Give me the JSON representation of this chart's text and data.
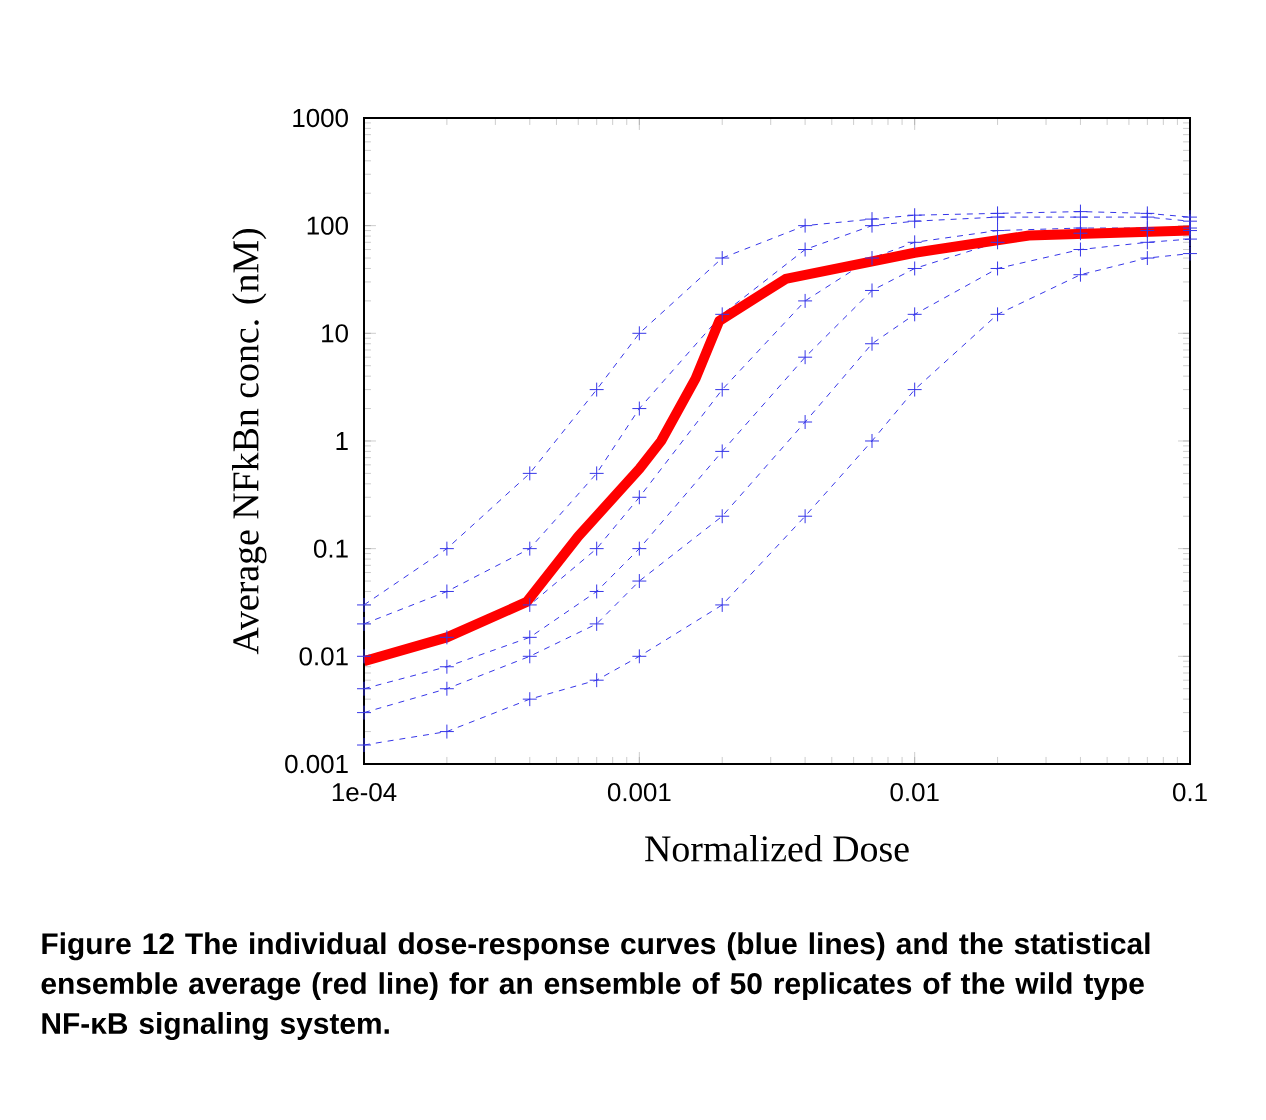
{
  "chart_data": {
    "type": "line",
    "xlabel": "Normalized Dose",
    "ylabel": "Average NFkBn conc. (nM)",
    "annotations": [
      "Figure 12 The individual dose-response curves (blue lines) and the statistical ensemble average (red line) for an ensemble of 50 replicates of the wild type NF-κB signaling system."
    ],
    "log": "xy",
    "xlim": [
      0.0001,
      0.1
    ],
    "ylim": [
      0.001,
      1000
    ],
    "xticks": [
      {
        "value": 0.0001,
        "label": "1e-04"
      },
      0.001,
      0.01,
      0.1
    ],
    "yticks": [
      0.001,
      0.01,
      0.1,
      1,
      10,
      100,
      1000
    ],
    "series": [
      {
        "color": "#3535e8",
        "marker": "cross",
        "line_style": "dashed",
        "x": [
          0.0001,
          0.0002,
          0.0004,
          0.0007,
          0.001,
          0.002,
          0.004,
          0.007,
          0.01,
          0.02,
          0.04,
          0.07,
          0.1
        ],
        "values": [
          0.03,
          0.1,
          0.5,
          3,
          10,
          50,
          100,
          115,
          125,
          130,
          135,
          130,
          120
        ]
      },
      {
        "color": "#3535e8",
        "marker": "cross",
        "line_style": "dashed",
        "x": [
          0.0001,
          0.0002,
          0.0004,
          0.0007,
          0.001,
          0.002,
          0.004,
          0.007,
          0.01,
          0.02,
          0.04,
          0.07,
          0.1
        ],
        "values": [
          0.02,
          0.04,
          0.1,
          0.5,
          2,
          15,
          60,
          100,
          110,
          120,
          120,
          120,
          110
        ]
      },
      {
        "color": "#3535e8",
        "marker": "cross",
        "line_style": "dashed",
        "x": [
          0.0001,
          0.0002,
          0.0004,
          0.0007,
          0.001,
          0.002,
          0.004,
          0.007,
          0.01,
          0.02,
          0.04,
          0.07,
          0.1
        ],
        "values": [
          0.01,
          0.015,
          0.03,
          0.1,
          0.3,
          3,
          20,
          50,
          70,
          90,
          95,
          95,
          95
        ]
      },
      {
        "color": "#3535e8",
        "marker": "cross",
        "line_style": "dashed",
        "x": [
          0.0001,
          0.0002,
          0.0004,
          0.0007,
          0.001,
          0.002,
          0.004,
          0.007,
          0.01,
          0.02,
          0.04,
          0.07,
          0.1
        ],
        "values": [
          0.005,
          0.008,
          0.015,
          0.04,
          0.1,
          0.8,
          6,
          25,
          40,
          70,
          85,
          90,
          90
        ]
      },
      {
        "color": "#3535e8",
        "marker": "cross",
        "line_style": "dashed",
        "x": [
          0.0001,
          0.0002,
          0.0004,
          0.0007,
          0.001,
          0.002,
          0.004,
          0.007,
          0.01,
          0.02,
          0.04,
          0.07,
          0.1
        ],
        "values": [
          0.003,
          0.005,
          0.01,
          0.02,
          0.05,
          0.2,
          1.5,
          8,
          15,
          40,
          60,
          70,
          75
        ]
      },
      {
        "color": "#3535e8",
        "marker": "cross",
        "line_style": "dashed",
        "x": [
          0.0001,
          0.0002,
          0.0004,
          0.0007,
          0.001,
          0.002,
          0.004,
          0.007,
          0.01,
          0.02,
          0.04,
          0.07,
          0.1
        ],
        "values": [
          0.0015,
          0.002,
          0.004,
          0.006,
          0.01,
          0.03,
          0.2,
          1,
          3,
          15,
          35,
          50,
          55
        ]
      },
      {
        "color": "#ff0000",
        "marker": "none",
        "line_style": "solid",
        "x": [
          0.0001,
          0.0002,
          0.00039,
          0.0006,
          0.001,
          0.0012,
          0.0016,
          0.00195,
          0.0034,
          0.01,
          0.026,
          0.1
        ],
        "values": [
          0.009,
          0.015,
          0.032,
          0.13,
          0.55,
          1,
          3.8,
          13,
          32,
          56,
          81,
          90
        ]
      }
    ]
  }
}
